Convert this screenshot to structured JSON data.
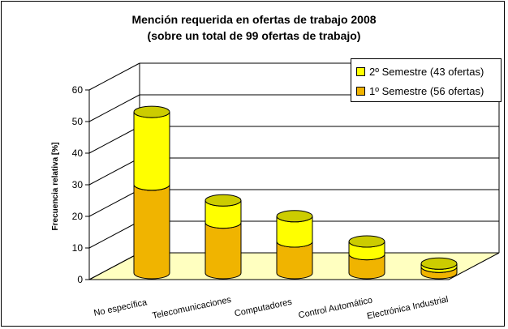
{
  "chart_data": {
    "type": "bar",
    "stacked": true,
    "three_d": true,
    "title": "Mención requerida en ofertas de trabajo 2008",
    "subtitle": "(sobre un total de 99 ofertas de trabajo)",
    "categories": [
      "No específica",
      "Telecomunicaciones",
      "Computadores",
      "Control Automático",
      "Electrónica Industrial"
    ],
    "series": [
      {
        "name": "1º Semestre (56 ofertas)",
        "values": [
          28,
          16,
          10,
          6,
          2
        ],
        "color": "#F0B400"
      },
      {
        "name": "2º Semestre (43 ofertas)",
        "values": [
          23,
          7,
          8,
          4,
          1
        ],
        "color": "#FFFF00"
      }
    ],
    "ylabel": "Frecuencia relativa [%]",
    "xlabel": "",
    "ylim": [
      0,
      60
    ],
    "yticks": [
      0,
      10,
      20,
      30,
      40,
      50,
      60
    ],
    "grid": true,
    "legend_position": "top-right",
    "floor_color": "#FFFFC0"
  }
}
